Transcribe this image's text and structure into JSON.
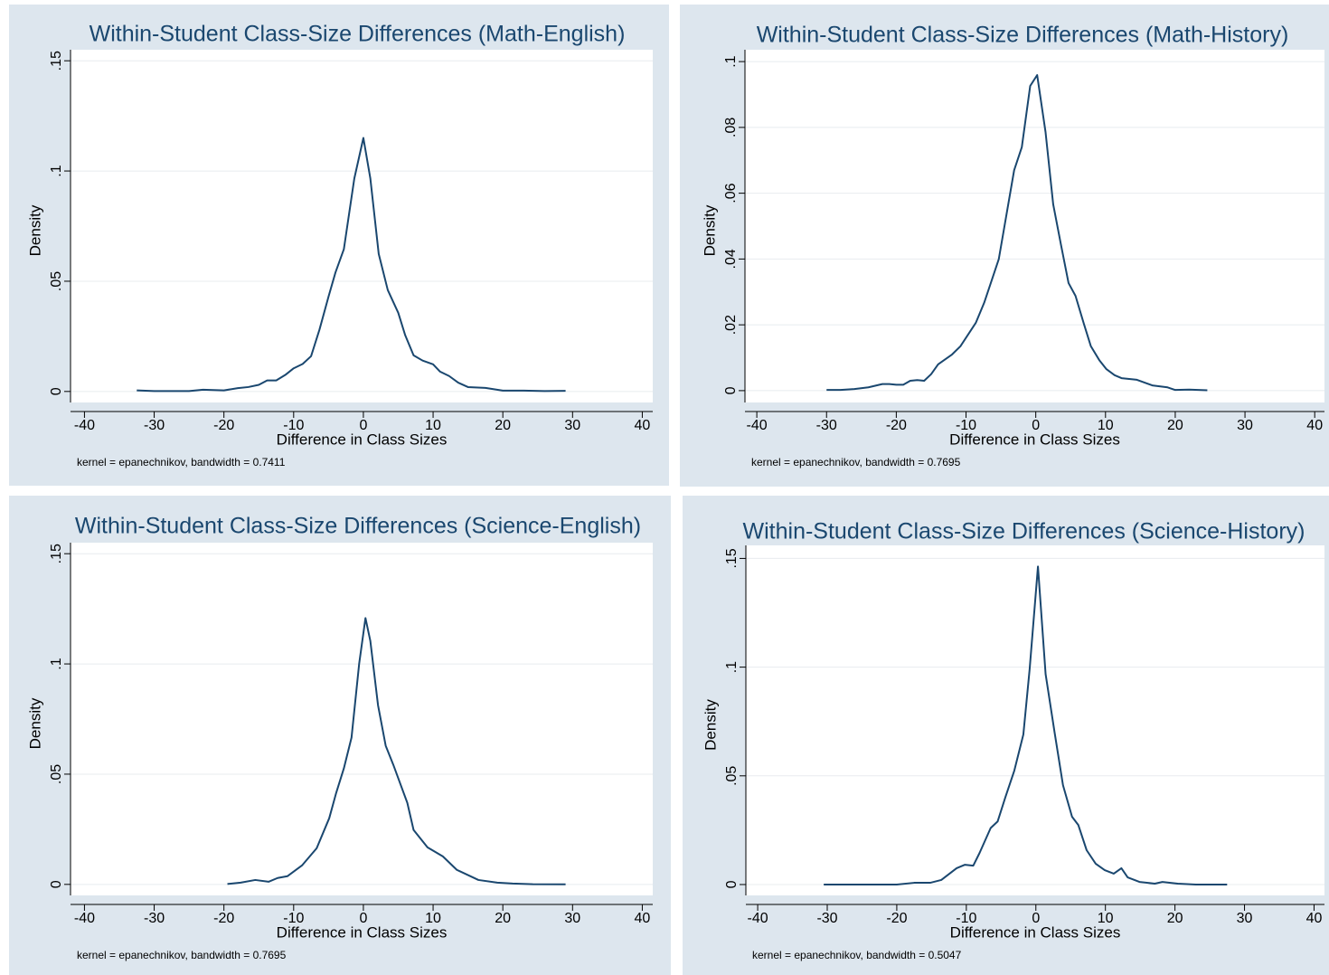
{
  "chart_data": [
    {
      "type": "line",
      "title": "Within-Student Class-Size Differences (Math-English)",
      "x_label": "Difference in Class Sizes",
      "y_label": "Density",
      "note": "kernel = epanechnikov, bandwidth = 0.7411",
      "color": "#1a476f",
      "grid": true,
      "x": [
        -32.5,
        -30,
        -27,
        -25,
        -23,
        -20,
        -18,
        -16.5,
        -15,
        -13.8,
        -12.5,
        -11.2,
        -10,
        -8.7,
        -7.5,
        -6.3,
        -5,
        -4,
        -2.8,
        -1.3,
        0,
        1,
        2.2,
        3.5,
        5,
        6,
        7.2,
        8.5,
        10,
        11,
        12.3,
        13.6,
        15,
        17.5,
        20,
        23,
        26,
        29
      ],
      "values": [
        0.0005,
        0.0002,
        0.0002,
        0.0002,
        0.0008,
        0.0005,
        0.0015,
        0.002,
        0.003,
        0.005,
        0.005,
        0.0075,
        0.0105,
        0.0125,
        0.016,
        0.028,
        0.043,
        0.054,
        0.0645,
        0.0966,
        0.115,
        0.0966,
        0.0624,
        0.046,
        0.0357,
        0.0255,
        0.0164,
        0.014,
        0.0123,
        0.009,
        0.007,
        0.004,
        0.002,
        0.0016,
        0.0004,
        0.0004,
        0.0002,
        0.0003
      ],
      "xlim": [
        -42,
        41.5
      ],
      "ylim": [
        -0.005,
        0.155
      ],
      "xticks": [
        -40,
        -30,
        -20,
        -10,
        0,
        10,
        20,
        30,
        40
      ],
      "yticks": [
        0,
        {
          "value": 0.05,
          "label": ".05"
        },
        {
          "value": 0.1,
          "label": ".1"
        },
        {
          "value": 0.15,
          "label": ".15"
        }
      ]
    },
    {
      "type": "line",
      "title": "Within-Student Class-Size Differences (Math-History)",
      "x_label": "Difference in Class Sizes",
      "y_label": "Density",
      "note": "kernel = epanechnikov, bandwidth = 0.7695",
      "color": "#1a476f",
      "grid": true,
      "x": [
        -30,
        -28,
        -26,
        -24,
        -22,
        -21,
        -20,
        -19,
        -18,
        -17,
        -16,
        -15,
        -14,
        -12,
        -10.8,
        -8.6,
        -7.4,
        -6.4,
        -5.3,
        -3.1,
        -2,
        -0.8,
        0.2,
        1.4,
        2.5,
        3.6,
        4.7,
        5.7,
        6.9,
        7.9,
        9.1,
        10.1,
        11.3,
        12.3,
        14.5,
        16.7,
        18.9,
        20,
        22,
        24.6
      ],
      "values": [
        0.0002,
        0.0002,
        0.0005,
        0.001,
        0.002,
        0.002,
        0.0018,
        0.0018,
        0.003,
        0.0032,
        0.003,
        0.005,
        0.008,
        0.011,
        0.0135,
        0.0206,
        0.0267,
        0.033,
        0.04,
        0.067,
        0.074,
        0.0926,
        0.0959,
        0.0786,
        0.0566,
        0.0445,
        0.0327,
        0.0288,
        0.0203,
        0.0135,
        0.0093,
        0.0066,
        0.0047,
        0.0038,
        0.0033,
        0.0016,
        0.001,
        0.0002,
        0.0003,
        0.0001
      ],
      "xlim": [
        -41.7,
        41.4
      ],
      "ylim": [
        -0.0036,
        0.1036
      ],
      "xticks": [
        -40,
        -30,
        -20,
        -10,
        0,
        10,
        20,
        30,
        40
      ],
      "yticks": [
        0,
        {
          "value": 0.02,
          "label": ".02"
        },
        {
          "value": 0.04,
          "label": ".04"
        },
        {
          "value": 0.06,
          "label": ".06"
        },
        {
          "value": 0.08,
          "label": ".08"
        },
        {
          "value": 0.1,
          "label": ".1"
        }
      ]
    },
    {
      "type": "line",
      "title": "Within-Student Class-Size Differences (Science-English)",
      "x_label": "Difference in Class Sizes",
      "y_label": "Density",
      "note": "kernel = epanechnikov, bandwidth = 0.7695",
      "color": "#1a476f",
      "grid": true,
      "x": [
        -19.5,
        -17.6,
        -15.5,
        -13.6,
        -12.3,
        -10.9,
        -8.8,
        -6.7,
        -4.9,
        -3.9,
        -2.8,
        -1.7,
        -0.6,
        0.3,
        1,
        2.1,
        3.2,
        4.3,
        5.3,
        6.3,
        7.2,
        9.2,
        11.4,
        13.4,
        16.5,
        19.2,
        21.4,
        24.3,
        29
      ],
      "values": [
        0.0002,
        0.0008,
        0.002,
        0.0012,
        0.0029,
        0.0037,
        0.0086,
        0.0164,
        0.03,
        0.0415,
        0.0526,
        0.0666,
        0.1002,
        0.1208,
        0.1104,
        0.0813,
        0.0629,
        0.0542,
        0.0456,
        0.037,
        0.0247,
        0.0168,
        0.0127,
        0.0066,
        0.002,
        0.0008,
        0.0004,
        0.0001,
        0
      ],
      "xlim": [
        -42,
        41.5
      ],
      "ylim": [
        -0.005,
        0.155
      ],
      "xticks": [
        -40,
        -30,
        -20,
        -10,
        0,
        10,
        20,
        30,
        40
      ],
      "yticks": [
        0,
        {
          "value": 0.05,
          "label": ".05"
        },
        {
          "value": 0.1,
          "label": ".1"
        },
        {
          "value": 0.15,
          "label": ".15"
        }
      ]
    },
    {
      "type": "line",
      "title": "Within-Student Class-Size Differences (Science-History)",
      "x_label": "Difference in Class Sizes",
      "y_label": "Density",
      "note": "kernel = epanechnikov, bandwidth = 0.5047",
      "color": "#1a476f",
      "grid": true,
      "x": [
        -30.5,
        -25,
        -20,
        -17.5,
        -15.2,
        -13.6,
        -11.4,
        -10.2,
        -9,
        -8.1,
        -6.5,
        -5.5,
        -4.4,
        -3.1,
        -1.8,
        -0.9,
        0.3,
        1.4,
        2.7,
        3.9,
        5.2,
        6.1,
        7.3,
        8.6,
        9.9,
        11.2,
        12.3,
        13.2,
        14.9,
        17.1,
        18.2,
        20.4,
        23,
        27.5
      ],
      "values": [
        0,
        0,
        0,
        0.0008,
        0.0008,
        0.0021,
        0.0075,
        0.0091,
        0.0087,
        0.0145,
        0.026,
        0.029,
        0.04,
        0.0524,
        0.069,
        0.0989,
        0.1463,
        0.0968,
        0.0698,
        0.0457,
        0.0312,
        0.0274,
        0.0158,
        0.0096,
        0.0066,
        0.005,
        0.0075,
        0.0033,
        0.0012,
        0.0004,
        0.0012,
        0.0004,
        0,
        0
      ],
      "xlim": [
        -41.7,
        41.5
      ],
      "ylim": [
        -0.005,
        0.156
      ],
      "xticks": [
        -40,
        -30,
        -20,
        -10,
        0,
        10,
        20,
        30,
        40
      ],
      "yticks": [
        0,
        {
          "value": 0.05,
          "label": ".05"
        },
        {
          "value": 0.1,
          "label": ".1"
        },
        {
          "value": 0.15,
          "label": ".15"
        }
      ]
    }
  ]
}
